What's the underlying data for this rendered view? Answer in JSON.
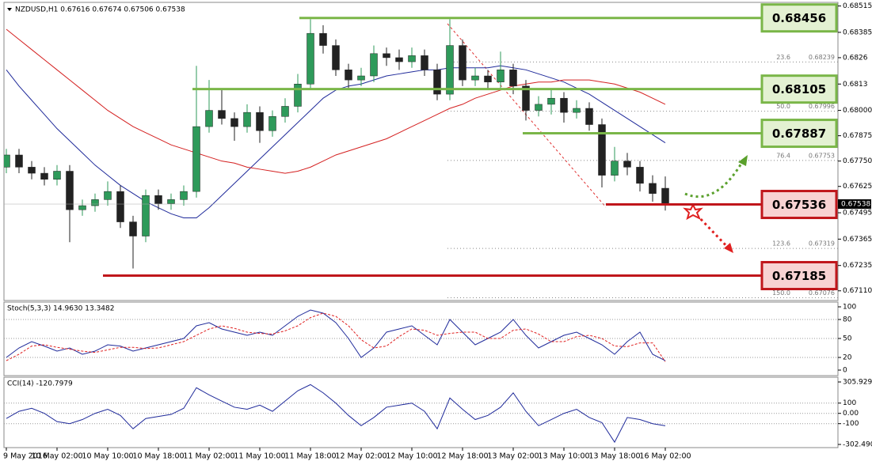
{
  "chart_data": [
    {
      "type": "candlestick",
      "title": "NZDUSD,H1  0.67616 0.67674 0.67506 0.67538",
      "categories": [
        "9 May 2016",
        null,
        null,
        null,
        "10 May 02:00",
        null,
        null,
        null,
        "10 May 10:00",
        null,
        null,
        null,
        "10 May 18:00",
        null,
        null,
        null,
        "11 May 02:00",
        null,
        null,
        null,
        "11 May 10:00",
        null,
        null,
        null,
        "11 May 18:00",
        null,
        null,
        null,
        "12 May 02:00",
        null,
        null,
        null,
        "12 May 10:00",
        null,
        null,
        null,
        "12 May 18:00",
        null,
        null,
        null,
        "13 May 02:00",
        null,
        null,
        null,
        "13 May 10:00",
        null,
        null,
        null,
        "13 May 18:00",
        null,
        null,
        null,
        "16 May 02:00"
      ],
      "open": [
        0.6772,
        0.6778,
        0.6772,
        0.6769,
        0.6766,
        0.677,
        0.6751,
        0.6753,
        0.6756,
        0.676,
        0.6745,
        0.6738,
        0.6758,
        0.6754,
        0.6756,
        0.676,
        0.6792,
        0.68,
        0.6796,
        0.6792,
        0.6799,
        0.679,
        0.6797,
        0.6802,
        0.6813,
        0.6838,
        0.6832,
        0.682,
        0.6815,
        0.6817,
        0.6828,
        0.6826,
        0.6824,
        0.6827,
        0.682,
        0.6808,
        0.6832,
        0.6815,
        0.6817,
        0.6814,
        0.682,
        0.6812,
        0.68,
        0.6803,
        0.6806,
        0.6799,
        0.6801,
        0.6793,
        0.6768,
        0.6775,
        0.6772,
        0.6764,
        0.67616
      ],
      "high": [
        0.6781,
        0.6781,
        0.6775,
        0.6772,
        0.6773,
        0.6773,
        0.6756,
        0.6759,
        0.6765,
        0.6763,
        0.6748,
        0.6761,
        0.6761,
        0.6759,
        0.6763,
        0.6822,
        0.6815,
        0.681,
        0.6799,
        0.6803,
        0.6802,
        0.68,
        0.6806,
        0.6818,
        0.6845,
        0.6842,
        0.6835,
        0.6823,
        0.6821,
        0.6832,
        0.6831,
        0.683,
        0.6831,
        0.683,
        0.6823,
        0.6845,
        0.6835,
        0.6821,
        0.682,
        0.6829,
        0.6823,
        0.6815,
        0.6807,
        0.681,
        0.6809,
        0.6805,
        0.6804,
        0.6796,
        0.6782,
        0.6779,
        0.6775,
        0.6768,
        0.67674
      ],
      "low": [
        0.6769,
        0.6769,
        0.6766,
        0.6763,
        0.6763,
        0.6735,
        0.6748,
        0.675,
        0.6753,
        0.6742,
        0.6722,
        0.6735,
        0.6751,
        0.6751,
        0.6753,
        0.6757,
        0.6789,
        0.6793,
        0.6785,
        0.6789,
        0.6784,
        0.6787,
        0.6794,
        0.6799,
        0.681,
        0.6828,
        0.6817,
        0.6811,
        0.6812,
        0.6814,
        0.6822,
        0.682,
        0.6821,
        0.6817,
        0.6805,
        0.6805,
        0.6812,
        0.6812,
        0.681,
        0.6811,
        0.6808,
        0.6795,
        0.6797,
        0.6798,
        0.6794,
        0.6796,
        0.679,
        0.6762,
        0.6765,
        0.6768,
        0.676,
        0.6755,
        0.67506
      ],
      "close": [
        0.6778,
        0.6772,
        0.6769,
        0.6766,
        0.677,
        0.6751,
        0.6753,
        0.6756,
        0.676,
        0.6745,
        0.6738,
        0.6758,
        0.6754,
        0.6756,
        0.676,
        0.6792,
        0.68,
        0.6796,
        0.6792,
        0.6799,
        0.679,
        0.6797,
        0.6802,
        0.6813,
        0.6838,
        0.6832,
        0.682,
        0.6815,
        0.6817,
        0.6828,
        0.6826,
        0.6824,
        0.6827,
        0.682,
        0.6808,
        0.6832,
        0.6815,
        0.6817,
        0.6814,
        0.682,
        0.6812,
        0.68,
        0.6803,
        0.6806,
        0.6799,
        0.6801,
        0.6793,
        0.6768,
        0.6775,
        0.6772,
        0.6764,
        0.6759,
        0.67538
      ],
      "up_color": "#2e9a5a",
      "down_color": "#222222",
      "lines": [
        {
          "color": "#1f2a9a",
          "values": [
            0.682,
            0.6812,
            0.6805,
            0.6798,
            0.6791,
            0.6785,
            0.6779,
            0.6773,
            0.6768,
            0.6763,
            0.6759,
            0.6755,
            0.6752,
            0.6749,
            0.6747,
            0.6747,
            0.6752,
            0.6758,
            0.6764,
            0.677,
            0.6776,
            0.6782,
            0.6788,
            0.6794,
            0.68,
            0.6806,
            0.681,
            0.6812,
            0.6813,
            0.6815,
            0.6817,
            0.6818,
            0.6819,
            0.682,
            0.682,
            0.6821,
            0.6821,
            0.6821,
            0.6821,
            0.6822,
            0.6821,
            0.682,
            0.6818,
            0.6816,
            0.6814,
            0.6811,
            0.6808,
            0.6804,
            0.68,
            0.6796,
            0.6792,
            0.6788,
            0.6784
          ]
        },
        {
          "color": "#d42020",
          "values": [
            0.684,
            0.6835,
            0.683,
            0.6825,
            0.682,
            0.6815,
            0.681,
            0.6805,
            0.68,
            0.6796,
            0.6792,
            0.6789,
            0.6786,
            0.6783,
            0.6781,
            0.6779,
            0.6777,
            0.6775,
            0.6774,
            0.6772,
            0.6771,
            0.677,
            0.6769,
            0.677,
            0.6772,
            0.6775,
            0.6778,
            0.678,
            0.6782,
            0.6784,
            0.6786,
            0.6789,
            0.6792,
            0.6795,
            0.6798,
            0.6801,
            0.6803,
            0.6806,
            0.6808,
            0.681,
            0.6812,
            0.6813,
            0.6814,
            0.6814,
            0.6815,
            0.6815,
            0.6815,
            0.6814,
            0.6813,
            0.6811,
            0.6809,
            0.6806,
            0.6803
          ]
        }
      ],
      "levels": [
        {
          "value": 0.68456,
          "color": "#7ab648",
          "fill": "#e3f1d2"
        },
        {
          "value": 0.68105,
          "color": "#7ab648",
          "fill": "#e3f1d2"
        },
        {
          "value": 0.67887,
          "color": "#7ab648",
          "fill": "#e3f1d2"
        },
        {
          "value": 0.67536,
          "color": "#c0161b",
          "fill": "#f8d3d3"
        },
        {
          "value": 0.67185,
          "color": "#c0161b",
          "fill": "#f8d3d3"
        }
      ],
      "fib": [
        {
          "label": "23.6",
          "value": 0.68239
        },
        {
          "label": "50.0",
          "value": 0.67996
        },
        {
          "label": "76.4",
          "value": 0.67753
        },
        {
          "label": "123.6",
          "value": 0.67319
        },
        {
          "label": "150.0",
          "value": 0.67076
        }
      ],
      "ylim": [
        0.6707,
        0.68525
      ],
      "yticks": [
        0.68515,
        0.68385,
        0.6826,
        0.6813,
        {
          "value": 0.68,
          "label": "0.68000"
        },
        0.67875,
        {
          "value": 0.6775,
          "label": "0.67750"
        },
        0.67625,
        0.67495,
        0.67365,
        0.67235,
        {
          "value": 0.6711,
          "label": "0.67110"
        }
      ]
    },
    {
      "type": "line",
      "title": "Stoch(5,3,3) 14.9630 13.3482",
      "series": [
        {
          "color": "#1f2a9a",
          "values": [
            20,
            35,
            45,
            38,
            30,
            35,
            25,
            30,
            40,
            38,
            30,
            35,
            40,
            45,
            50,
            70,
            75,
            65,
            60,
            55,
            60,
            55,
            70,
            85,
            95,
            90,
            75,
            50,
            20,
            35,
            60,
            65,
            70,
            55,
            40,
            80,
            60,
            40,
            50,
            60,
            80,
            55,
            35,
            45,
            55,
            60,
            50,
            40,
            25,
            45,
            60,
            25,
            14.963
          ]
        },
        {
          "color": "#e02020",
          "dash": true,
          "values": [
            15,
            25,
            38,
            40,
            36,
            33,
            30,
            28,
            32,
            36,
            36,
            34,
            35,
            40,
            45,
            55,
            65,
            70,
            66,
            60,
            58,
            57,
            62,
            70,
            83,
            90,
            85,
            70,
            48,
            35,
            38,
            53,
            65,
            63,
            55,
            58,
            60,
            60,
            50,
            50,
            63,
            65,
            57,
            45,
            45,
            53,
            55,
            50,
            38,
            37,
            43,
            43,
            13.3482
          ]
        }
      ],
      "ylim": [
        0,
        100
      ],
      "yticks": [
        100,
        80,
        50,
        20,
        0
      ]
    },
    {
      "type": "line",
      "title": "CCI(14) -120.7979",
      "series": [
        {
          "color": "#1f2a9a",
          "values": [
            -50,
            20,
            50,
            0,
            -80,
            -100,
            -60,
            0,
            40,
            -20,
            -150,
            -50,
            -30,
            -10,
            50,
            250,
            180,
            120,
            60,
            40,
            80,
            20,
            120,
            220,
            280,
            200,
            100,
            -20,
            -120,
            -40,
            60,
            80,
            100,
            20,
            -150,
            150,
            40,
            -60,
            -20,
            60,
            200,
            20,
            -120,
            -60,
            0,
            40,
            -40,
            -90,
            -280,
            -40,
            -60,
            -100,
            -120.7979
          ]
        }
      ],
      "ylim": [
        -302.4901,
        305.9295
      ],
      "yticks": [
        305.9295,
        100,
        {
          "value": 0,
          "label": "0.00"
        },
        -100,
        -302.4901
      ]
    }
  ]
}
